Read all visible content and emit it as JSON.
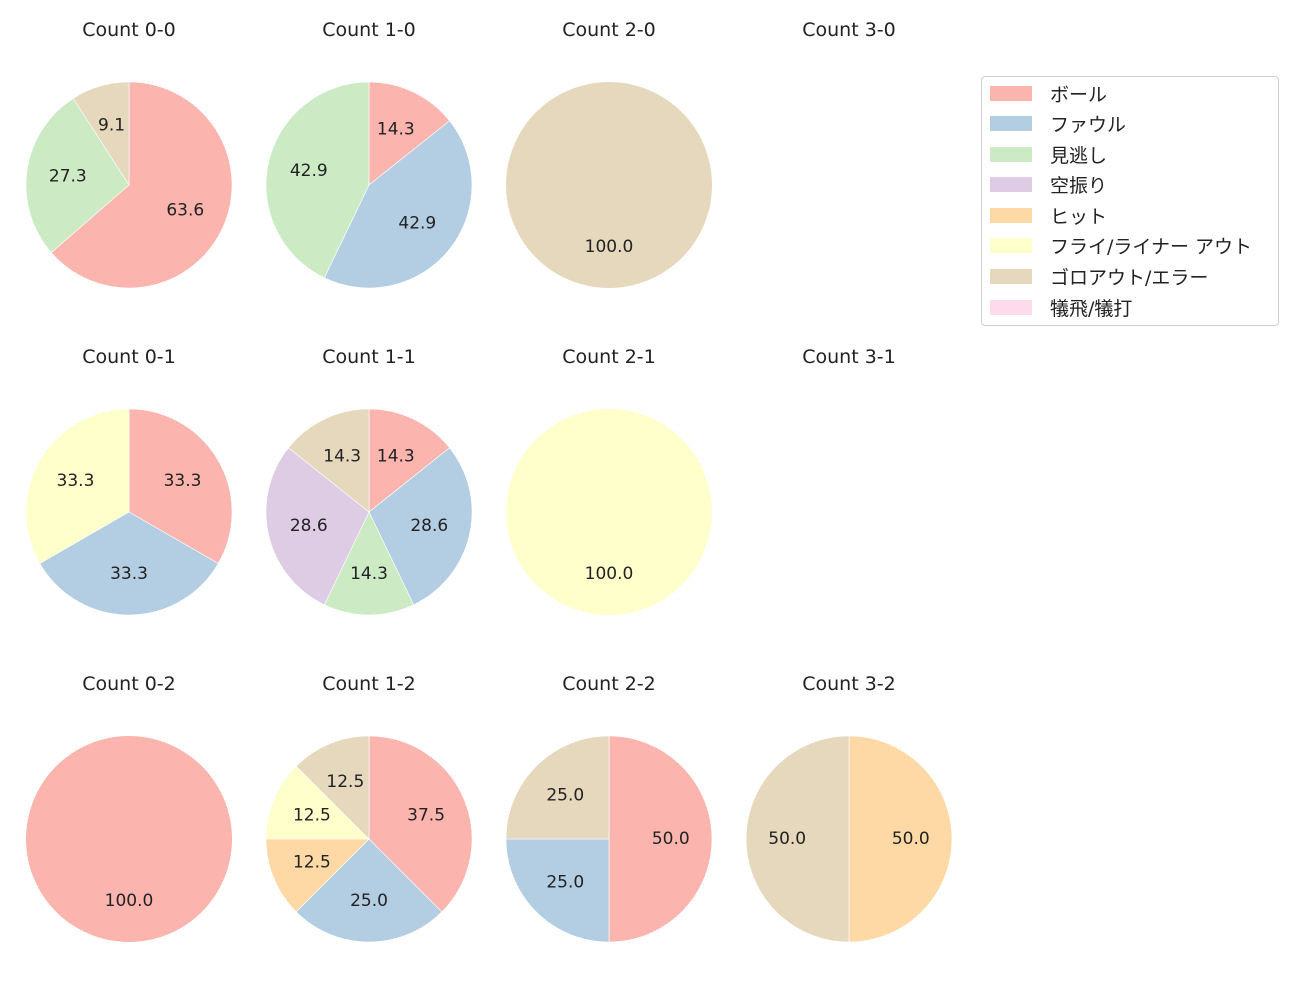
{
  "chart_data": {
    "type": "pie",
    "layout": {
      "rows": 3,
      "cols": 4,
      "start_angle_deg": 90,
      "direction": "clockwise",
      "legend_position": "upper right"
    },
    "categories": [
      "ボール",
      "ファウル",
      "見逃し",
      "空振り",
      "ヒット",
      "フライ/ライナー アウト",
      "ゴロアウト/エラー",
      "犠飛/犠打"
    ],
    "colors": [
      "#fbb4ae",
      "#b3cde3",
      "#ccebc5",
      "#decbe4",
      "#fed9a6",
      "#ffffcc",
      "#e5d8bd",
      "#fddaec"
    ],
    "charts": [
      {
        "title": "Count 0-0",
        "row": 0,
        "col": 0,
        "slices": [
          {
            "cat": 0,
            "value": 63.6
          },
          {
            "cat": 2,
            "value": 27.3
          },
          {
            "cat": 6,
            "value": 9.1
          }
        ]
      },
      {
        "title": "Count 1-0",
        "row": 0,
        "col": 1,
        "slices": [
          {
            "cat": 0,
            "value": 14.3
          },
          {
            "cat": 1,
            "value": 42.9
          },
          {
            "cat": 2,
            "value": 42.9
          }
        ]
      },
      {
        "title": "Count 2-0",
        "row": 0,
        "col": 2,
        "slices": [
          {
            "cat": 6,
            "value": 100.0
          }
        ]
      },
      {
        "title": "Count 3-0",
        "row": 0,
        "col": 3,
        "slices": []
      },
      {
        "title": "Count 0-1",
        "row": 1,
        "col": 0,
        "slices": [
          {
            "cat": 0,
            "value": 33.3
          },
          {
            "cat": 1,
            "value": 33.3
          },
          {
            "cat": 5,
            "value": 33.3
          }
        ]
      },
      {
        "title": "Count 1-1",
        "row": 1,
        "col": 1,
        "slices": [
          {
            "cat": 0,
            "value": 14.3
          },
          {
            "cat": 1,
            "value": 28.6
          },
          {
            "cat": 2,
            "value": 14.3
          },
          {
            "cat": 3,
            "value": 28.6
          },
          {
            "cat": 6,
            "value": 14.3
          }
        ]
      },
      {
        "title": "Count 2-1",
        "row": 1,
        "col": 2,
        "slices": [
          {
            "cat": 5,
            "value": 100.0
          }
        ]
      },
      {
        "title": "Count 3-1",
        "row": 1,
        "col": 3,
        "slices": []
      },
      {
        "title": "Count 0-2",
        "row": 2,
        "col": 0,
        "slices": [
          {
            "cat": 0,
            "value": 100.0
          }
        ]
      },
      {
        "title": "Count 1-2",
        "row": 2,
        "col": 1,
        "slices": [
          {
            "cat": 0,
            "value": 37.5
          },
          {
            "cat": 1,
            "value": 25.0
          },
          {
            "cat": 4,
            "value": 12.5
          },
          {
            "cat": 5,
            "value": 12.5
          },
          {
            "cat": 6,
            "value": 12.5
          }
        ]
      },
      {
        "title": "Count 2-2",
        "row": 2,
        "col": 2,
        "slices": [
          {
            "cat": 0,
            "value": 50.0
          },
          {
            "cat": 1,
            "value": 25.0
          },
          {
            "cat": 6,
            "value": 25.0
          }
        ]
      },
      {
        "title": "Count 3-2",
        "row": 2,
        "col": 3,
        "slices": [
          {
            "cat": 4,
            "value": 50.0
          },
          {
            "cat": 6,
            "value": 50.0
          }
        ]
      }
    ]
  },
  "legend": {
    "items": [
      {
        "label": "ボール",
        "color": "#fbb4ae"
      },
      {
        "label": "ファウル",
        "color": "#b3cde3"
      },
      {
        "label": "見逃し",
        "color": "#ccebc5"
      },
      {
        "label": "空振り",
        "color": "#decbe4"
      },
      {
        "label": "ヒット",
        "color": "#fed9a6"
      },
      {
        "label": "フライ/ライナー アウト",
        "color": "#ffffcc"
      },
      {
        "label": "ゴロアウト/エラー",
        "color": "#e5d8bd"
      },
      {
        "label": "犠飛/犠打",
        "color": "#fddaec"
      }
    ]
  }
}
